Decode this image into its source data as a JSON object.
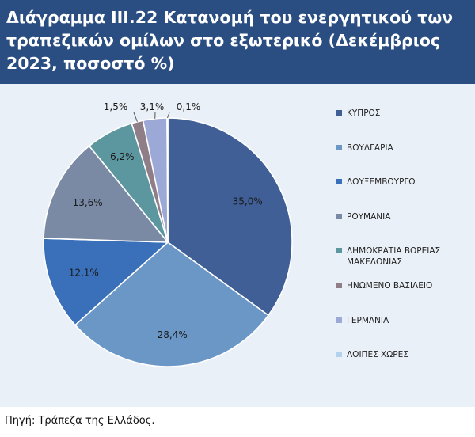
{
  "header": {
    "title": "Διάγραμμα III.22 Κατανομή του ενεργητικού των τραπεζικών ομίλων στο εξωτερικό (Δεκέμβριος 2023, ποσοστό %)"
  },
  "source": "Πηγή: Τράπεζα της Ελλάδος.",
  "colors": {
    "header_bg": "#2b4e82",
    "chart_bg": "#eaf0f7"
  },
  "chart_data": {
    "type": "pie",
    "title": "Διάγραμμα III.22 Κατανομή του ενεργητικού των τραπεζικών ομίλων στο εξωτερικό (Δεκέμβριος 2023, ποσοστό %)",
    "legend_position": "right",
    "slices": [
      {
        "name": "ΚΥΠΡΟΣ",
        "value": 35.0,
        "label": "35,0%",
        "color": "#3f5f96"
      },
      {
        "name": "ΒΟΥΛΓΑΡΙΑ",
        "value": 28.4,
        "label": "28,4%",
        "color": "#6b97c7"
      },
      {
        "name": "ΛΟΥΞΕΜΒΟΥΡΓΟ",
        "value": 12.1,
        "label": "12,1%",
        "color": "#3a6fb9"
      },
      {
        "name": "ΡΟΥΜΑΝΙΑ",
        "value": 13.6,
        "label": "13,6%",
        "color": "#7a8aa5"
      },
      {
        "name": "ΔΗΜΟΚΡΑΤΙΑ ΒΟΡΕΙΑΣ ΜΑΚΕΔΟΝΙΑΣ",
        "value": 6.2,
        "label": "6,2%",
        "color": "#5c97a0"
      },
      {
        "name": "ΗΝΩΜΕΝΟ ΒΑΣΙΛΕΙΟ",
        "value": 1.5,
        "label": "1,5%",
        "color": "#8f7d88"
      },
      {
        "name": "ΓΕΡΜΑΝΙΑ",
        "value": 3.1,
        "label": "3,1%",
        "color": "#9ca8d6"
      },
      {
        "name": "ΛΟΙΠΕΣ ΧΩΡΕΣ",
        "value": 0.1,
        "label": "0,1%",
        "color": "#b3d2ee"
      }
    ]
  }
}
